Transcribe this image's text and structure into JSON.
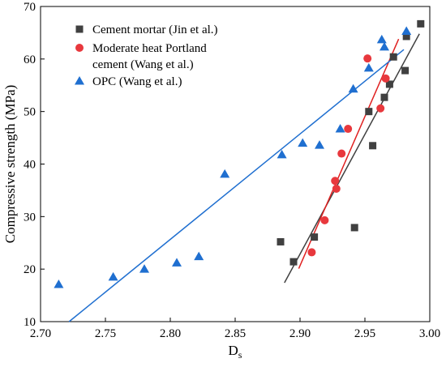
{
  "chart_data": {
    "type": "scatter",
    "xlabel": "D",
    "xlabel_sub": "s",
    "ylabel": "Compressive strength (MPa)",
    "xlim": [
      2.7,
      3.0
    ],
    "ylim": [
      10,
      70
    ],
    "xticks": [
      2.7,
      2.75,
      2.8,
      2.85,
      2.9,
      2.95,
      3.0
    ],
    "xtick_labels": [
      "2.70",
      "2.75",
      "2.80",
      "2.85",
      "2.90",
      "2.95",
      "3.00"
    ],
    "yticks": [
      10,
      20,
      30,
      40,
      50,
      60,
      70
    ],
    "ytick_labels": [
      "10",
      "20",
      "30",
      "40",
      "50",
      "60",
      "70"
    ],
    "grid": false,
    "legend_position": "top-left",
    "series": [
      {
        "name": "Cement mortar (Jin et al.)",
        "marker": "square",
        "color": "#404040",
        "line_color": "#404040",
        "points": [
          [
            2.885,
            25.2
          ],
          [
            2.895,
            21.4
          ],
          [
            2.911,
            26.1
          ],
          [
            2.942,
            27.9
          ],
          [
            2.953,
            50.0
          ],
          [
            2.956,
            43.5
          ],
          [
            2.965,
            52.7
          ],
          [
            2.969,
            55.2
          ],
          [
            2.972,
            60.4
          ],
          [
            2.981,
            57.8
          ],
          [
            2.982,
            64.3
          ],
          [
            2.993,
            66.7
          ]
        ],
        "fit": [
          [
            2.888,
            17.4
          ],
          [
            2.992,
            64.8
          ]
        ]
      },
      {
        "name": "Moderate heat Portland\ncement (Wang et al.)",
        "marker": "circle",
        "color": "#e8383d",
        "line_color": "#e02020",
        "points": [
          [
            2.909,
            23.2
          ],
          [
            2.919,
            29.3
          ],
          [
            2.927,
            36.8
          ],
          [
            2.928,
            35.3
          ],
          [
            2.932,
            42.0
          ],
          [
            2.937,
            46.7
          ],
          [
            2.952,
            60.1
          ],
          [
            2.962,
            50.6
          ],
          [
            2.966,
            56.3
          ]
        ],
        "fit": [
          [
            2.899,
            20.1
          ],
          [
            2.976,
            63.8
          ]
        ]
      },
      {
        "name": "OPC (Wang et al.)",
        "marker": "triangle",
        "color": "#1f6fd0",
        "line_color": "#1f6fd0",
        "points": [
          [
            2.714,
            17.1
          ],
          [
            2.756,
            18.5
          ],
          [
            2.78,
            20.0
          ],
          [
            2.805,
            21.2
          ],
          [
            2.822,
            22.4
          ],
          [
            2.842,
            38.1
          ],
          [
            2.886,
            41.8
          ],
          [
            2.902,
            44.0
          ],
          [
            2.915,
            43.6
          ],
          [
            2.931,
            46.7
          ],
          [
            2.941,
            54.3
          ],
          [
            2.953,
            58.3
          ],
          [
            2.963,
            63.7
          ],
          [
            2.965,
            62.3
          ],
          [
            2.982,
            65.3
          ]
        ],
        "fit": [
          [
            2.722,
            10.0
          ],
          [
            2.98,
            61.8
          ]
        ]
      }
    ]
  }
}
